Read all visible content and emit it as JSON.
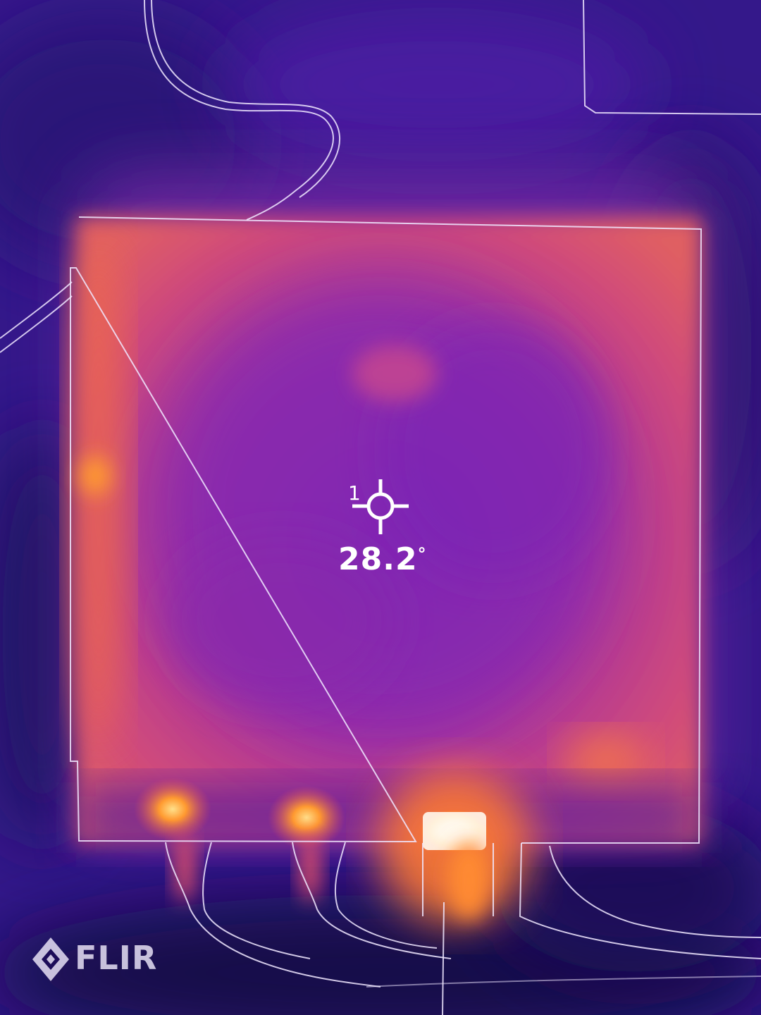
{
  "measurement": {
    "spot_index": "1",
    "temperature": "28.2",
    "unit": "°"
  },
  "brand": {
    "logo_text": "FLIR"
  },
  "icons": {
    "crosshair": "crosshair-icon",
    "logo_mark": "flir-diamond-icon"
  },
  "palette": {
    "background": "#2a1470",
    "cool": "#3b1c8c",
    "mid": "#8a2aa8",
    "warm": "#d0487a",
    "hot": "#ff8a30",
    "hottest": "#fff6e0"
  }
}
